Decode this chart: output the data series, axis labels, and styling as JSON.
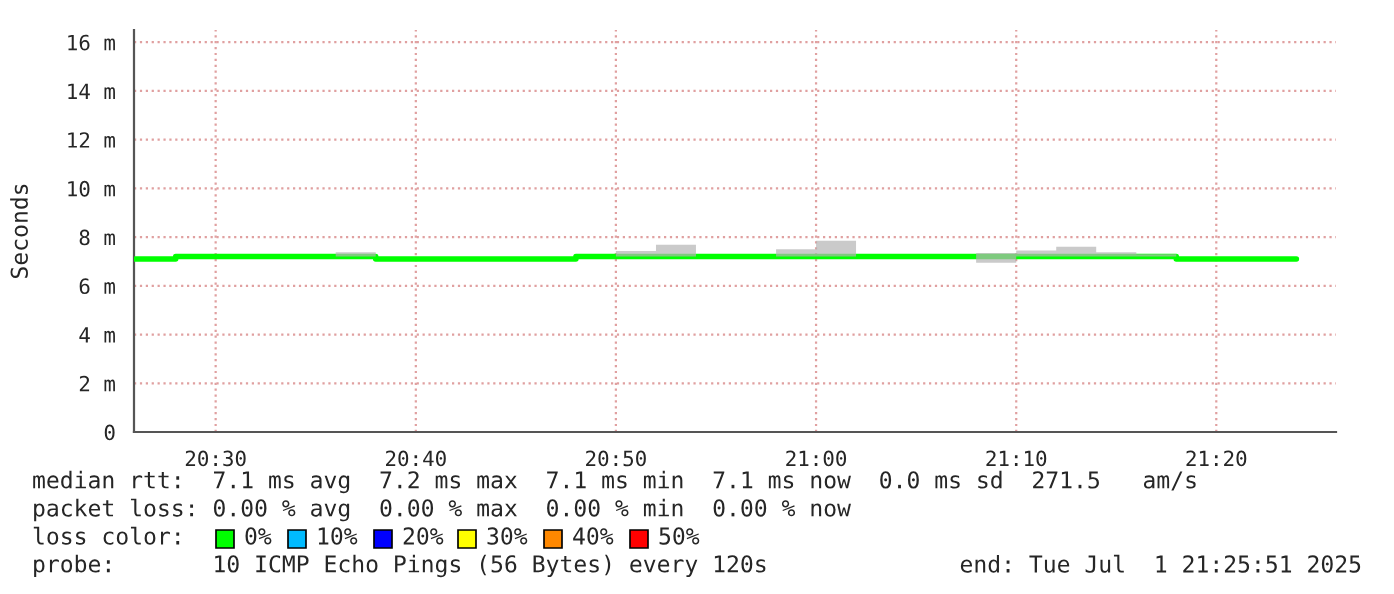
{
  "chart_data": {
    "type": "step",
    "ylabel": "Seconds",
    "x": [
      20.4333,
      20.4667,
      20.5,
      20.5333,
      20.5667,
      20.6,
      20.6333,
      20.6667,
      20.7,
      20.7333,
      20.7667,
      20.8,
      20.8333,
      20.8667,
      20.9,
      20.9333,
      20.9667,
      21.0,
      21.0333,
      21.0667,
      21.1,
      21.1333,
      21.1667,
      21.2,
      21.2333,
      21.2667,
      21.3,
      21.3333,
      21.3667,
      21.4
    ],
    "series": [
      {
        "color": "#00ff00",
        "values": [
          7.1,
          7.2,
          7.2,
          7.2,
          7.2,
          7.2,
          7.1,
          7.1,
          7.1,
          7.1,
          7.1,
          7.2,
          7.2,
          7.2,
          7.2,
          7.2,
          7.2,
          7.2,
          7.2,
          7.2,
          7.2,
          7.2,
          7.2,
          7.2,
          7.2,
          7.2,
          7.1,
          7.1,
          7.1,
          7.1
        ],
        "lower": [
          7.1,
          7.2,
          7.2,
          7.2,
          7.2,
          7.2,
          7.1,
          7.1,
          7.1,
          7.1,
          7.1,
          7.2,
          7.2,
          7.2,
          7.2,
          7.2,
          7.2,
          7.2,
          7.2,
          7.2,
          7.2,
          6.95,
          7.2,
          7.2,
          7.2,
          7.2,
          7.1,
          7.1,
          7.1,
          7.1
        ],
        "upper": [
          7.1,
          7.2,
          7.2,
          7.2,
          7.2,
          7.38,
          7.1,
          7.1,
          7.1,
          7.1,
          7.1,
          7.2,
          7.43,
          7.69,
          7.2,
          7.2,
          7.5,
          7.85,
          7.2,
          7.2,
          7.2,
          7.35,
          7.45,
          7.6,
          7.38,
          7.3,
          7.1,
          7.1,
          7.1,
          7.1
        ]
      }
    ],
    "xlim": [
      20.432,
      21.433
    ],
    "xticks": [
      {
        "value": 20.5,
        "label": "20:30"
      },
      {
        "value": 20.6667,
        "label": "20:40"
      },
      {
        "value": 20.8333,
        "label": "20:50"
      },
      {
        "value": 21.0,
        "label": "21:00"
      },
      {
        "value": 21.1667,
        "label": "21:10"
      },
      {
        "value": 21.3333,
        "label": "21:20"
      }
    ],
    "ylim": [
      0,
      16.5
    ],
    "yticks": [
      0,
      {
        "value": 2,
        "label": "2 m"
      },
      {
        "value": 4,
        "label": "4 m"
      },
      {
        "value": 6,
        "label": "6 m"
      },
      {
        "value": 8,
        "label": "8 m"
      },
      {
        "value": 10,
        "label": "10 m"
      },
      {
        "value": 12,
        "label": "12 m"
      },
      {
        "value": 14,
        "label": "14 m"
      },
      {
        "value": 16,
        "label": "16 m"
      }
    ],
    "grid": true,
    "annotations": [
      "median rtt:  7.1 ms avg  7.2 ms max  7.1 ms min  7.1 ms now  0.0 ms sd  271.5   am/s",
      "packet loss: 0.00 % avg  0.00 % max  0.00 % min  0.00 % now",
      "loss color:",
      "0%",
      "10%",
      "20%",
      "30%",
      "40%",
      "50%",
      "probe:       10 ICMP Echo Pings (56 Bytes) every 120s",
      "end: Tue Jul  1 21:25:51 2025"
    ]
  }
}
